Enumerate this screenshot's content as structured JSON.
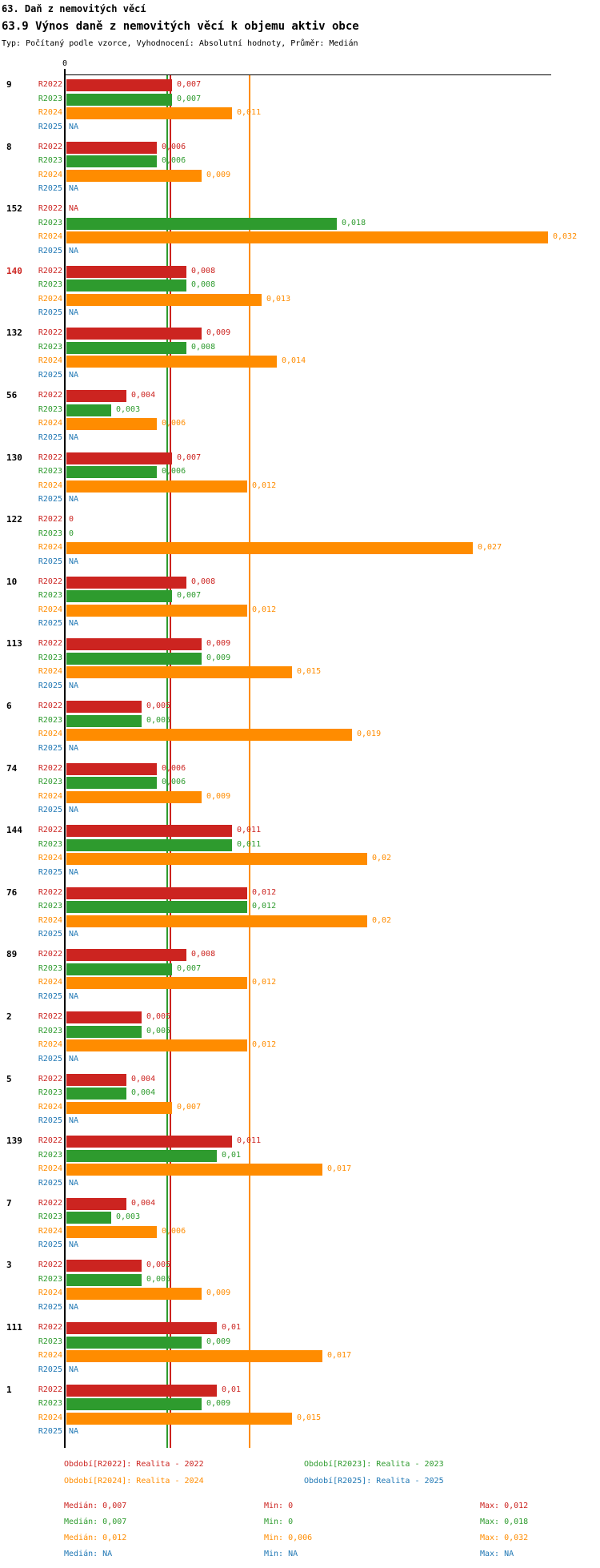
{
  "header": {
    "title": "63. Daň z nemovitých věcí",
    "subtitle": "63.9 Výnos daně z nemovitých věcí k objemu aktiv obce",
    "meta": "Typ: Počítaný podle vzorce, Vyhodnocení: Absolutní hodnoty, Průměr: Medián"
  },
  "chart_data": {
    "type": "bar",
    "orientation": "horizontal",
    "value_format": "czech-decimal-comma",
    "axis": {
      "zero_label": "0",
      "xlim": [
        0,
        0.032
      ],
      "grid": false
    },
    "series": [
      {
        "id": "R2022",
        "label": "R2022",
        "color": "#cc2420",
        "period": "Realita - 2022"
      },
      {
        "id": "R2023",
        "label": "R2023",
        "color": "#2e9b2e",
        "period": "Realita - 2023"
      },
      {
        "id": "R2024",
        "label": "R2024",
        "color": "#ff8c00",
        "period": "Realita - 2024"
      },
      {
        "id": "R2025",
        "label": "R2025",
        "color": "#1f77b4",
        "period": "Realita - 2025"
      }
    ],
    "median_lines": [
      {
        "series": "R2023",
        "value": 0.007
      },
      {
        "series": "R2022",
        "value": 0.007
      },
      {
        "series": "R2024",
        "value": 0.012
      }
    ],
    "groups": [
      {
        "label": "9",
        "highlight": false,
        "values": [
          0.007,
          0.007,
          0.011,
          null
        ],
        "value_labels": [
          "0,007",
          "0,007",
          "0,011",
          "NA"
        ]
      },
      {
        "label": "8",
        "highlight": false,
        "values": [
          0.006,
          0.006,
          0.009,
          null
        ],
        "value_labels": [
          "0,006",
          "0,006",
          "0,009",
          "NA"
        ]
      },
      {
        "label": "152",
        "highlight": false,
        "values": [
          null,
          0.018,
          0.032,
          null
        ],
        "value_labels": [
          "NA",
          "0,018",
          "0,032",
          "NA"
        ]
      },
      {
        "label": "140",
        "highlight": true,
        "values": [
          0.008,
          0.008,
          0.013,
          null
        ],
        "value_labels": [
          "0,008",
          "0,008",
          "0,013",
          "NA"
        ]
      },
      {
        "label": "132",
        "highlight": false,
        "values": [
          0.009,
          0.008,
          0.014,
          null
        ],
        "value_labels": [
          "0,009",
          "0,008",
          "0,014",
          "NA"
        ]
      },
      {
        "label": "56",
        "highlight": false,
        "values": [
          0.004,
          0.003,
          0.006,
          null
        ],
        "value_labels": [
          "0,004",
          "0,003",
          "0,006",
          "NA"
        ]
      },
      {
        "label": "130",
        "highlight": false,
        "values": [
          0.007,
          0.006,
          0.012,
          null
        ],
        "value_labels": [
          "0,007",
          "0,006",
          "0,012",
          "NA"
        ]
      },
      {
        "label": "122",
        "highlight": false,
        "values": [
          0,
          0,
          0.027,
          null
        ],
        "value_labels": [
          "0",
          "0",
          "0,027",
          "NA"
        ]
      },
      {
        "label": "10",
        "highlight": false,
        "values": [
          0.008,
          0.007,
          0.012,
          null
        ],
        "value_labels": [
          "0,008",
          "0,007",
          "0,012",
          "NA"
        ]
      },
      {
        "label": "113",
        "highlight": false,
        "values": [
          0.009,
          0.009,
          0.015,
          null
        ],
        "value_labels": [
          "0,009",
          "0,009",
          "0,015",
          "NA"
        ]
      },
      {
        "label": "6",
        "highlight": false,
        "values": [
          0.005,
          0.005,
          0.019,
          null
        ],
        "value_labels": [
          "0,005",
          "0,005",
          "0,019",
          "NA"
        ]
      },
      {
        "label": "74",
        "highlight": false,
        "values": [
          0.006,
          0.006,
          0.009,
          null
        ],
        "value_labels": [
          "0,006",
          "0,006",
          "0,009",
          "NA"
        ]
      },
      {
        "label": "144",
        "highlight": false,
        "values": [
          0.011,
          0.011,
          0.02,
          null
        ],
        "value_labels": [
          "0,011",
          "0,011",
          "0,02",
          "NA"
        ]
      },
      {
        "label": "76",
        "highlight": false,
        "values": [
          0.012,
          0.012,
          0.02,
          null
        ],
        "value_labels": [
          "0,012",
          "0,012",
          "0,02",
          "NA"
        ]
      },
      {
        "label": "89",
        "highlight": false,
        "values": [
          0.008,
          0.007,
          0.012,
          null
        ],
        "value_labels": [
          "0,008",
          "0,007",
          "0,012",
          "NA"
        ]
      },
      {
        "label": "2",
        "highlight": false,
        "values": [
          0.005,
          0.005,
          0.012,
          null
        ],
        "value_labels": [
          "0,005",
          "0,005",
          "0,012",
          "NA"
        ]
      },
      {
        "label": "5",
        "highlight": false,
        "values": [
          0.004,
          0.004,
          0.007,
          null
        ],
        "value_labels": [
          "0,004",
          "0,004",
          "0,007",
          "NA"
        ]
      },
      {
        "label": "139",
        "highlight": false,
        "values": [
          0.011,
          0.01,
          0.017,
          null
        ],
        "value_labels": [
          "0,011",
          "0,01",
          "0,017",
          "NA"
        ]
      },
      {
        "label": "7",
        "highlight": false,
        "values": [
          0.004,
          0.003,
          0.006,
          null
        ],
        "value_labels": [
          "0,004",
          "0,003",
          "0,006",
          "NA"
        ]
      },
      {
        "label": "3",
        "highlight": false,
        "values": [
          0.005,
          0.005,
          0.009,
          null
        ],
        "value_labels": [
          "0,005",
          "0,005",
          "0,009",
          "NA"
        ]
      },
      {
        "label": "111",
        "highlight": false,
        "values": [
          0.01,
          0.009,
          0.017,
          null
        ],
        "value_labels": [
          "0,01",
          "0,009",
          "0,017",
          "NA"
        ]
      },
      {
        "label": "1",
        "highlight": false,
        "values": [
          0.01,
          0.009,
          0.015,
          null
        ],
        "value_labels": [
          "0,01",
          "0,009",
          "0,015",
          "NA"
        ]
      }
    ]
  },
  "legend": {
    "items": [
      {
        "series": "R2022",
        "text": "Období[R2022]: Realita - 2022",
        "color": "#cc2420"
      },
      {
        "series": "R2023",
        "text": "Období[R2023]: Realita - 2023",
        "color": "#2e9b2e"
      },
      {
        "series": "R2024",
        "text": "Období[R2024]: Realita - 2024",
        "color": "#ff8c00"
      },
      {
        "series": "R2025",
        "text": "Období[R2025]: Realita - 2025",
        "color": "#1f77b4"
      }
    ]
  },
  "stats": {
    "rows": [
      {
        "series": "R2022",
        "color": "#cc2420",
        "median_text": "Medián: 0,007",
        "min_text": "Min: 0",
        "max_text": "Max: 0,012"
      },
      {
        "series": "R2023",
        "color": "#2e9b2e",
        "median_text": "Medián: 0,007",
        "min_text": "Min: 0",
        "max_text": "Max: 0,018"
      },
      {
        "series": "R2024",
        "color": "#ff8c00",
        "median_text": "Medián: 0,012",
        "min_text": "Min: 0,006",
        "max_text": "Max: 0,032"
      },
      {
        "series": "R2025",
        "color": "#1f77b4",
        "median_text": "Medián: NA",
        "min_text": "Min: NA",
        "max_text": "Max: NA"
      }
    ]
  }
}
